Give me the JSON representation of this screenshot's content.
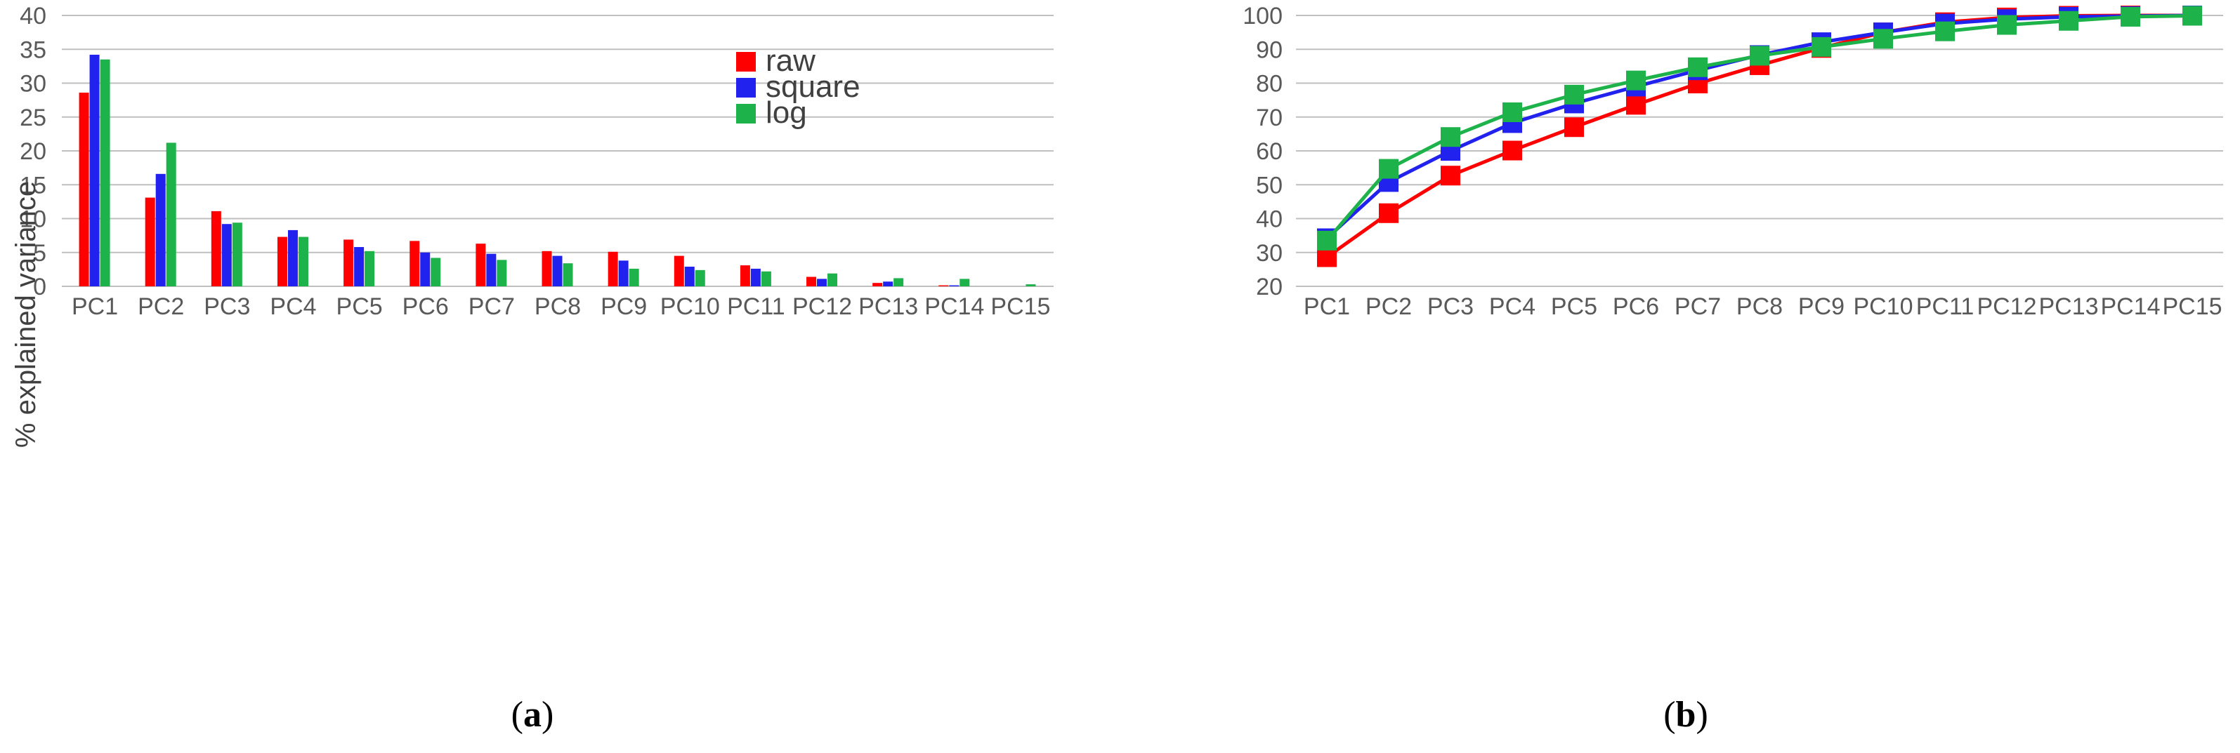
{
  "colors": {
    "raw": "#ff0000",
    "square": "#2222ee",
    "log": "#1eb24b",
    "grid": "#bfbfbf",
    "tick": "#595959"
  },
  "chart_data": [
    {
      "id": "a",
      "type": "bar",
      "categories": [
        "PC1",
        "PC2",
        "PC3",
        "PC4",
        "PC5",
        "PC6",
        "PC7",
        "PC8",
        "PC9",
        "PC10",
        "PC11",
        "PC12",
        "PC13",
        "PC14",
        "PC15"
      ],
      "series": [
        {
          "name": "raw",
          "values": [
            28.6,
            13.1,
            11.1,
            7.3,
            6.9,
            6.7,
            6.3,
            5.2,
            5.1,
            4.5,
            3.1,
            1.4,
            0.5,
            0.15,
            0.0
          ]
        },
        {
          "name": "square",
          "values": [
            34.2,
            16.6,
            9.2,
            8.3,
            5.8,
            5.0,
            4.8,
            4.5,
            3.8,
            2.9,
            2.6,
            1.1,
            0.7,
            0.15,
            0.0
          ]
        },
        {
          "name": "log",
          "values": [
            33.5,
            21.2,
            9.4,
            7.3,
            5.2,
            4.2,
            3.9,
            3.4,
            2.6,
            2.4,
            2.2,
            1.9,
            1.2,
            1.1,
            0.3
          ]
        }
      ],
      "yticks": [
        "0",
        "5",
        "10",
        "15",
        "20",
        "25",
        "30",
        "35",
        "40"
      ],
      "ylim": [
        0,
        40
      ],
      "ylabel": "% explained variance",
      "legend": {
        "position": "top-right",
        "entries": [
          "raw",
          "square",
          "log"
        ]
      },
      "grid": true,
      "panel_label": "(a)",
      "panel_letter": "a"
    },
    {
      "id": "b",
      "type": "line",
      "categories": [
        "PC1",
        "PC2",
        "PC3",
        "PC4",
        "PC5",
        "PC6",
        "PC7",
        "PC8",
        "PC9",
        "PC10",
        "PC11",
        "PC12",
        "PC13",
        "PC14",
        "PC15"
      ],
      "series": [
        {
          "name": "raw",
          "values": [
            28.6,
            41.6,
            52.7,
            60.1,
            67.0,
            73.6,
            79.9,
            85.3,
            90.4,
            95.0,
            98.0,
            99.4,
            99.9,
            100.0,
            100.0
          ]
        },
        {
          "name": "square",
          "values": [
            34.2,
            50.8,
            60.0,
            68.2,
            74.0,
            79.0,
            83.8,
            88.3,
            92.1,
            95.0,
            97.6,
            98.9,
            99.6,
            99.8,
            100.0
          ]
        },
        {
          "name": "log",
          "values": [
            33.5,
            54.7,
            64.1,
            71.4,
            76.6,
            80.8,
            84.7,
            88.1,
            90.7,
            93.1,
            95.3,
            97.2,
            98.4,
            99.6,
            99.9
          ]
        }
      ],
      "yticks": [
        "20",
        "30",
        "40",
        "50",
        "60",
        "70",
        "80",
        "90",
        "100"
      ],
      "ylim": [
        20,
        100
      ],
      "grid": true,
      "panel_label": "(b)",
      "panel_letter": "b"
    }
  ]
}
